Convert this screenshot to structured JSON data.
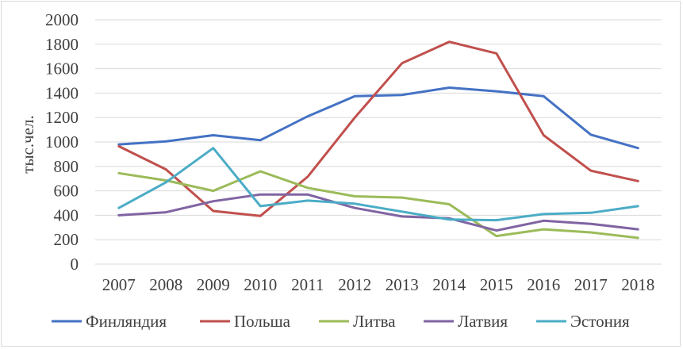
{
  "chart_data": {
    "type": "line",
    "title": "",
    "xlabel": "",
    "ylabel": "тыс.чел.",
    "x": [
      "2007",
      "2008",
      "2009",
      "2010",
      "2011",
      "2012",
      "2013",
      "2014",
      "2015",
      "2016",
      "2017",
      "2018"
    ],
    "ylim": [
      0,
      2000
    ],
    "yticks": [
      0,
      200,
      400,
      600,
      800,
      1000,
      1200,
      1400,
      1600,
      1800,
      2000
    ],
    "grid": "horizontal",
    "legend_position": "bottom",
    "series": [
      {
        "name": "Финляндия",
        "color": "#4472C4",
        "values": [
          980,
          1005,
          1055,
          1015,
          1210,
          1375,
          1385,
          1445,
          1415,
          1375,
          1060,
          950
        ]
      },
      {
        "name": "Польша",
        "color": "#C0504D",
        "values": [
          965,
          775,
          435,
          395,
          715,
          1200,
          1645,
          1820,
          1725,
          1055,
          765,
          680
        ]
      },
      {
        "name": "Литва",
        "color": "#9BBB59",
        "values": [
          745,
          685,
          600,
          760,
          625,
          555,
          545,
          490,
          230,
          285,
          260,
          215
        ]
      },
      {
        "name": "Латвия",
        "color": "#8064A2",
        "values": [
          400,
          425,
          515,
          570,
          570,
          460,
          390,
          375,
          275,
          355,
          330,
          285
        ]
      },
      {
        "name": "Эстония",
        "color": "#4BACC6",
        "values": [
          460,
          670,
          950,
          475,
          520,
          495,
          430,
          365,
          360,
          410,
          420,
          475
        ]
      }
    ]
  }
}
